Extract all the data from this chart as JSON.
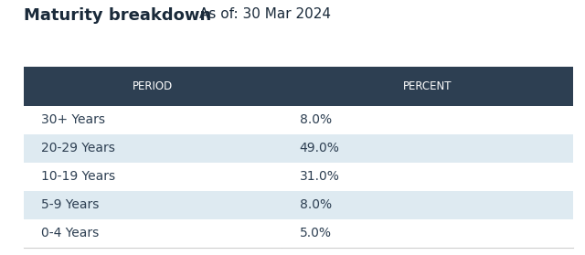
{
  "title": "Maturity breakdown",
  "subtitle": "As of: 30 Mar 2024",
  "col_headers": [
    "PERIOD",
    "PERCENT"
  ],
  "rows": [
    [
      "30+ Years",
      "8.0%"
    ],
    [
      "20-29 Years",
      "49.0%"
    ],
    [
      "10-19 Years",
      "31.0%"
    ],
    [
      "5-9 Years",
      "8.0%"
    ],
    [
      "0-4 Years",
      "5.0%"
    ]
  ],
  "header_bg": "#2d3f52",
  "header_text_color": "#ffffff",
  "alt_row_bg": "#deeaf1",
  "white_row_bg": "#ffffff",
  "title_color": "#1a2a3a",
  "body_text_color": "#2d3f52",
  "fig_bg": "#ffffff",
  "title_fontsize": 13,
  "subtitle_fontsize": 11,
  "header_fontsize": 8.5,
  "cell_fontsize": 10,
  "col_split": 0.47
}
